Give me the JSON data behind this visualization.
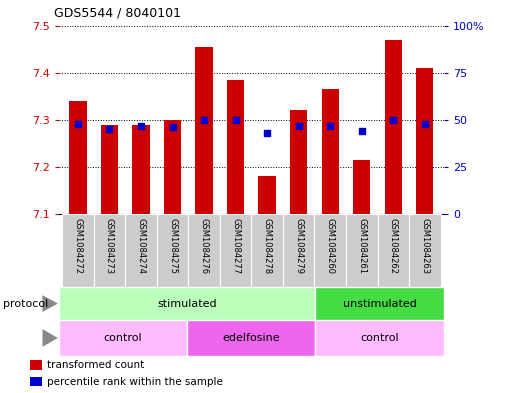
{
  "title": "GDS5544 / 8040101",
  "samples": [
    "GSM1084272",
    "GSM1084273",
    "GSM1084274",
    "GSM1084275",
    "GSM1084276",
    "GSM1084277",
    "GSM1084278",
    "GSM1084279",
    "GSM1084260",
    "GSM1084261",
    "GSM1084262",
    "GSM1084263"
  ],
  "transformed_count": [
    7.34,
    7.29,
    7.29,
    7.3,
    7.455,
    7.385,
    7.18,
    7.32,
    7.365,
    7.215,
    7.47,
    7.41
  ],
  "percentile_rank": [
    48,
    45,
    47,
    46,
    50,
    50,
    43,
    47,
    47,
    44,
    50,
    48
  ],
  "ylim_left": [
    7.1,
    7.5
  ],
  "ylim_right": [
    0,
    100
  ],
  "yticks_left": [
    7.1,
    7.2,
    7.3,
    7.4,
    7.5
  ],
  "yticks_right": [
    0,
    25,
    50,
    75,
    100
  ],
  "ytick_labels_right": [
    "0",
    "25",
    "50",
    "75",
    "100%"
  ],
  "bar_color": "#cc0000",
  "dot_color": "#0000cc",
  "protocol_labels": [
    {
      "text": "stimulated",
      "start": 0,
      "end": 8,
      "color": "#bbffbb"
    },
    {
      "text": "unstimulated",
      "start": 8,
      "end": 12,
      "color": "#44dd44"
    }
  ],
  "agent_labels": [
    {
      "text": "control",
      "start": 0,
      "end": 4,
      "color": "#ffbbff"
    },
    {
      "text": "edelfosine",
      "start": 4,
      "end": 8,
      "color": "#ee66ee"
    },
    {
      "text": "control",
      "start": 8,
      "end": 12,
      "color": "#ffbbff"
    }
  ],
  "grid_color": "black",
  "bg_color": "white",
  "label_bg": "#cccccc",
  "left_axis_color": "#cc0000",
  "right_axis_color": "#0000cc",
  "legend_items": [
    {
      "label": "transformed count",
      "color": "#cc0000"
    },
    {
      "label": "percentile rank within the sample",
      "color": "#0000cc"
    }
  ],
  "arrow_color": "#888888"
}
